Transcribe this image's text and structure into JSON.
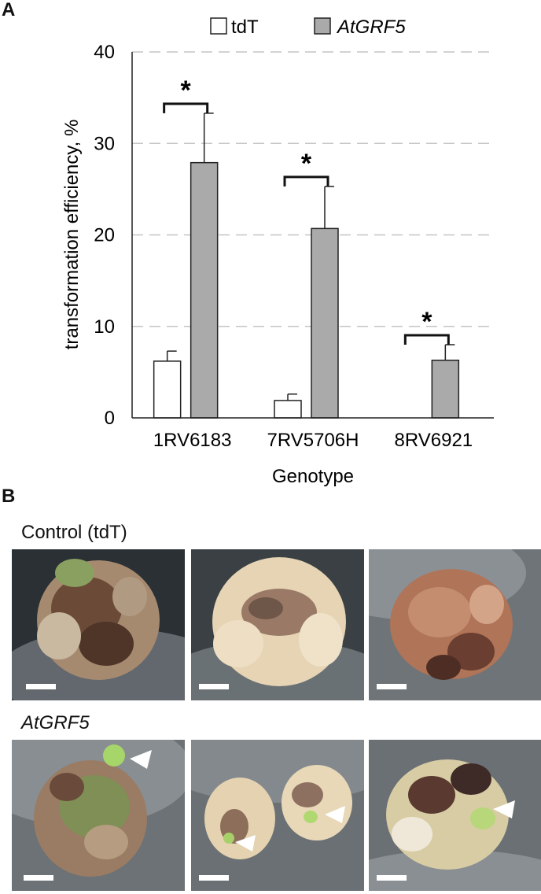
{
  "panel_a_label": "A",
  "panel_b_label": "B",
  "chart_data": {
    "type": "bar",
    "title": "",
    "xlabel": "Genotype",
    "ylabel": "transformation efficiency, %",
    "ylim": [
      0,
      40
    ],
    "yticks": [
      0,
      10,
      20,
      30,
      40
    ],
    "grid": "horizontal dashed",
    "legend_position": "top",
    "categories": [
      "1RV6183",
      "7RV5706H",
      "8RV6921"
    ],
    "series": [
      {
        "name": "tdT",
        "italic": false,
        "color": "#ffffff",
        "values": [
          6.2,
          1.9,
          0
        ],
        "errors": [
          1.1,
          0.7,
          0
        ]
      },
      {
        "name": "AtGRF5",
        "italic": true,
        "color": "#aaaaaa",
        "values": [
          27.9,
          20.7,
          6.3
        ],
        "errors": [
          5.4,
          4.6,
          1.7
        ]
      }
    ],
    "significance": [
      {
        "category": "1RV6183",
        "label": "*"
      },
      {
        "category": "7RV5706H",
        "label": "*"
      },
      {
        "category": "8RV6921",
        "label": "*"
      }
    ]
  },
  "panel_b": {
    "rows": [
      {
        "label": "Control (tdT)",
        "italic": false,
        "photos": [
          "callus-brown-green",
          "callus-pale-yellow",
          "callus-brown"
        ]
      },
      {
        "label": "AtGRF5",
        "italic": true,
        "photos": [
          "callus-green-shoots",
          "callus-pale-with-shoots",
          "callus-mixed-with-shoots"
        ]
      }
    ]
  }
}
